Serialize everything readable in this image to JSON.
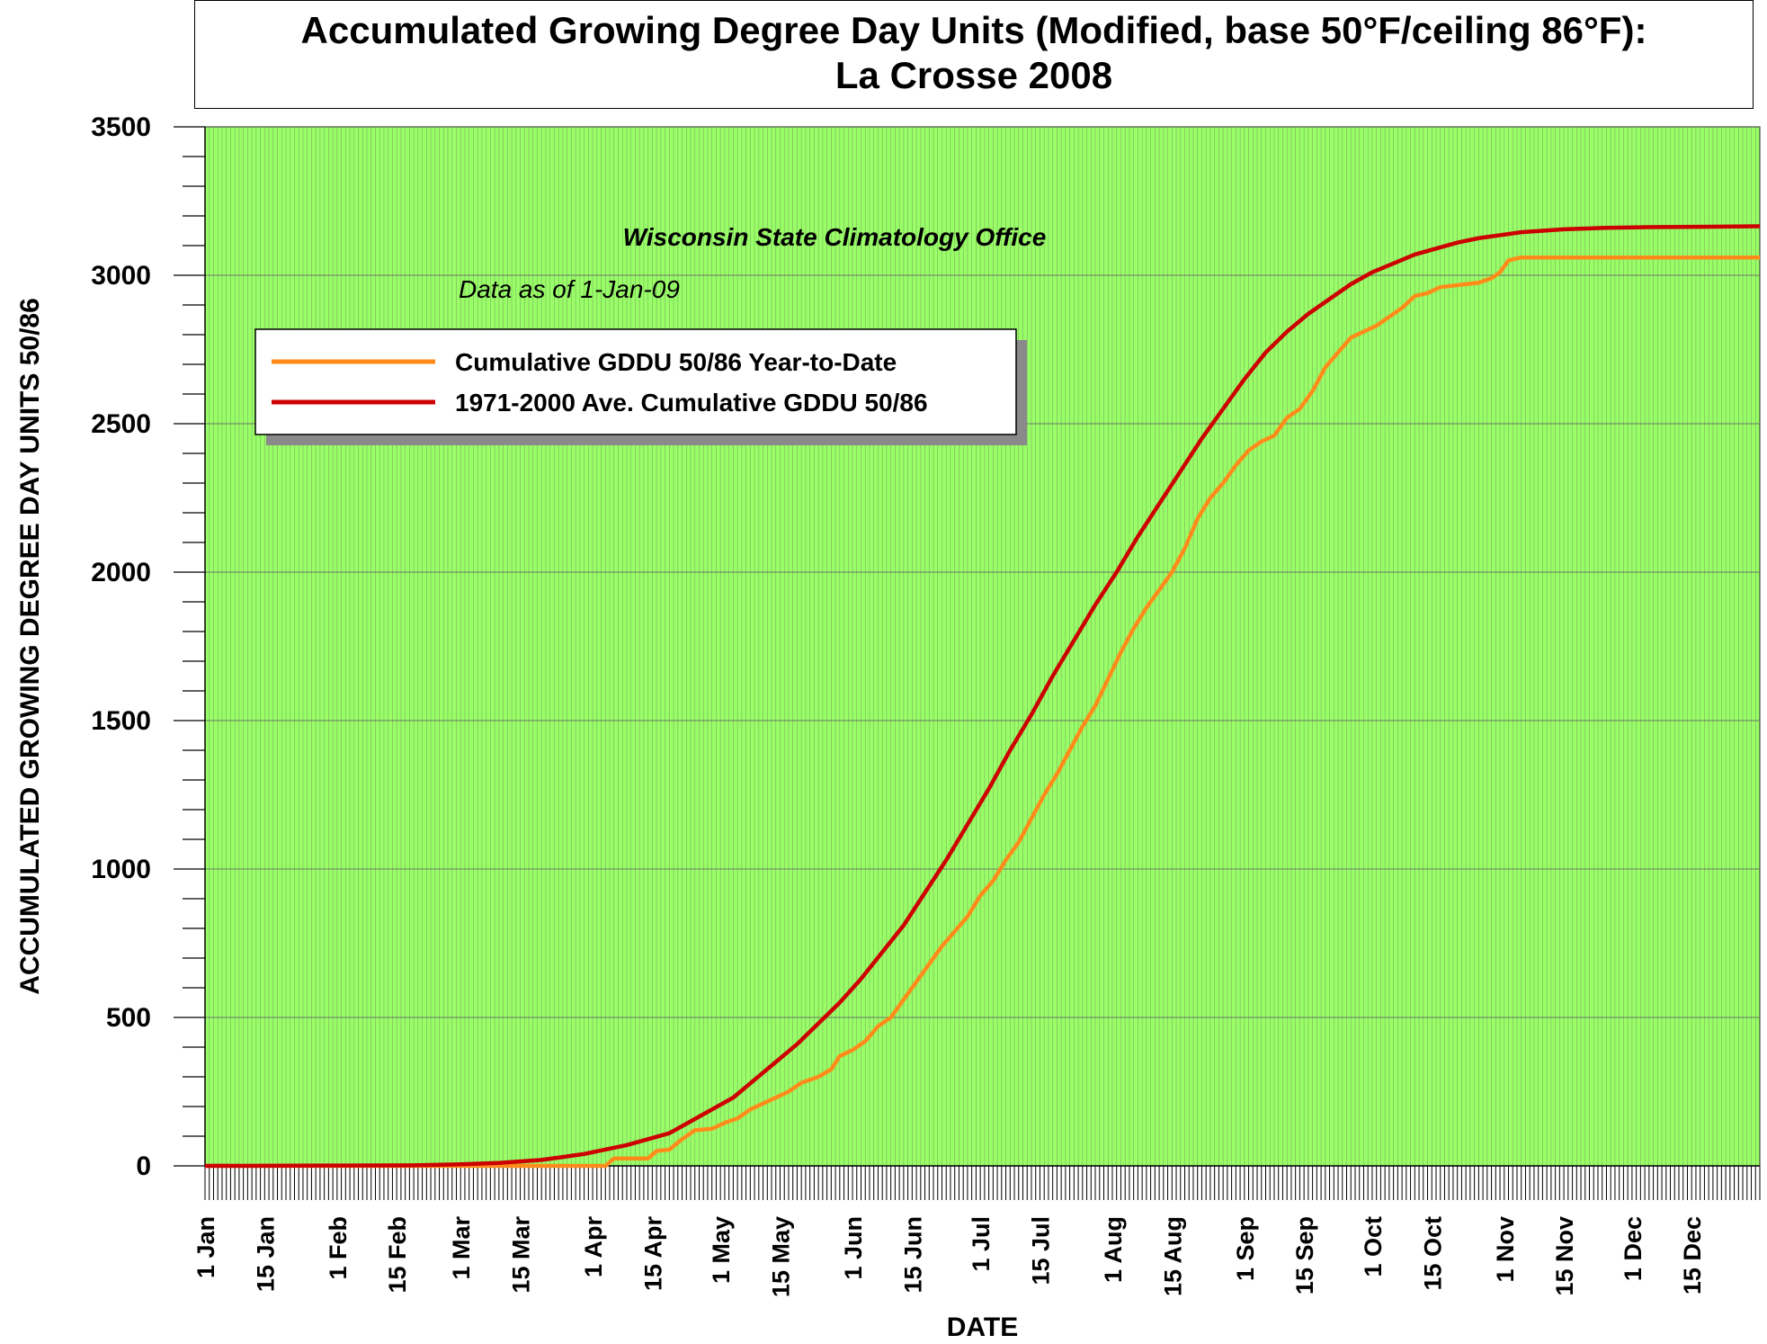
{
  "title": {
    "line1": "Accumulated Growing Degree Day Units (Modified, base 50°F/ceiling 86°F):",
    "line2": "La Crosse 2008"
  },
  "annotations": {
    "office": "Wisconsin State Climatology Office",
    "data_as_of": "Data as of 1-Jan-09"
  },
  "colors": {
    "plot_bg": "#99ff66",
    "grid": "#666666",
    "year_to_date": "#ff8c1a",
    "average": "#cc0000"
  },
  "chart_data": {
    "type": "line",
    "xlabel": "DATE",
    "ylabel": "ACCUMULATED GROWING DEGREE DAY UNITS 50/86",
    "ylim": [
      0,
      3500
    ],
    "xlim_day_of_year": [
      1,
      366
    ],
    "yticks": [
      0,
      500,
      1000,
      1500,
      2000,
      2500,
      3000,
      3500
    ],
    "xticks": [
      {
        "day": 1,
        "label": "1 Jan"
      },
      {
        "day": 15,
        "label": "15 Jan"
      },
      {
        "day": 32,
        "label": "1 Feb"
      },
      {
        "day": 46,
        "label": "15 Feb"
      },
      {
        "day": 61,
        "label": "1 Mar"
      },
      {
        "day": 75,
        "label": "15 Mar"
      },
      {
        "day": 92,
        "label": "1 Apr"
      },
      {
        "day": 106,
        "label": "15 Apr"
      },
      {
        "day": 122,
        "label": "1 May"
      },
      {
        "day": 136,
        "label": "15 May"
      },
      {
        "day": 153,
        "label": "1 Jun"
      },
      {
        "day": 167,
        "label": "15 Jun"
      },
      {
        "day": 183,
        "label": "1 Jul"
      },
      {
        "day": 197,
        "label": "15 Jul"
      },
      {
        "day": 214,
        "label": "1 Aug"
      },
      {
        "day": 228,
        "label": "15 Aug"
      },
      {
        "day": 245,
        "label": "1 Sep"
      },
      {
        "day": 259,
        "label": "15 Sep"
      },
      {
        "day": 275,
        "label": "1 Oct"
      },
      {
        "day": 289,
        "label": "15 Oct"
      },
      {
        "day": 306,
        "label": "1 Nov"
      },
      {
        "day": 320,
        "label": "15 Nov"
      },
      {
        "day": 336,
        "label": "1 Dec"
      },
      {
        "day": 350,
        "label": "15 Dec"
      }
    ],
    "legend_position": "top-left",
    "series": [
      {
        "name": "Cumulative GDDU 50/86 Year-to-Date",
        "color": "#ff8c1a",
        "points": [
          [
            1,
            0
          ],
          [
            60,
            0
          ],
          [
            70,
            0
          ],
          [
            80,
            0
          ],
          [
            88,
            0
          ],
          [
            92,
            0
          ],
          [
            95,
            0
          ],
          [
            97,
            25
          ],
          [
            103,
            25
          ],
          [
            105,
            25
          ],
          [
            107,
            50
          ],
          [
            110,
            55
          ],
          [
            113,
            90
          ],
          [
            116,
            120
          ],
          [
            120,
            125
          ],
          [
            123,
            145
          ],
          [
            126,
            160
          ],
          [
            129,
            190
          ],
          [
            132,
            210
          ],
          [
            135,
            230
          ],
          [
            138,
            250
          ],
          [
            141,
            280
          ],
          [
            145,
            300
          ],
          [
            148,
            325
          ],
          [
            150,
            370
          ],
          [
            153,
            390
          ],
          [
            156,
            420
          ],
          [
            159,
            470
          ],
          [
            162,
            500
          ],
          [
            165,
            560
          ],
          [
            168,
            620
          ],
          [
            171,
            680
          ],
          [
            174,
            740
          ],
          [
            177,
            790
          ],
          [
            180,
            840
          ],
          [
            183,
            910
          ],
          [
            186,
            960
          ],
          [
            189,
            1030
          ],
          [
            192,
            1090
          ],
          [
            195,
            1170
          ],
          [
            198,
            1250
          ],
          [
            201,
            1320
          ],
          [
            204,
            1400
          ],
          [
            207,
            1480
          ],
          [
            210,
            1550
          ],
          [
            213,
            1640
          ],
          [
            216,
            1730
          ],
          [
            219,
            1810
          ],
          [
            222,
            1880
          ],
          [
            225,
            1940
          ],
          [
            228,
            2000
          ],
          [
            231,
            2080
          ],
          [
            234,
            2180
          ],
          [
            237,
            2250
          ],
          [
            240,
            2300
          ],
          [
            243,
            2360
          ],
          [
            246,
            2410
          ],
          [
            249,
            2440
          ],
          [
            252,
            2460
          ],
          [
            255,
            2520
          ],
          [
            258,
            2550
          ],
          [
            261,
            2610
          ],
          [
            264,
            2690
          ],
          [
            267,
            2740
          ],
          [
            270,
            2790
          ],
          [
            273,
            2810
          ],
          [
            276,
            2830
          ],
          [
            279,
            2860
          ],
          [
            282,
            2890
          ],
          [
            285,
            2930
          ],
          [
            288,
            2940
          ],
          [
            291,
            2960
          ],
          [
            294,
            2965
          ],
          [
            297,
            2970
          ],
          [
            300,
            2975
          ],
          [
            303,
            2990
          ],
          [
            305,
            3010
          ],
          [
            307,
            3050
          ],
          [
            310,
            3060
          ],
          [
            320,
            3060
          ],
          [
            340,
            3060
          ],
          [
            366,
            3060
          ]
        ]
      },
      {
        "name": "1971-2000 Ave. Cumulative GDDU 50/86",
        "color": "#cc0000",
        "points": [
          [
            1,
            0
          ],
          [
            30,
            1
          ],
          [
            50,
            2
          ],
          [
            60,
            5
          ],
          [
            70,
            10
          ],
          [
            80,
            20
          ],
          [
            85,
            30
          ],
          [
            90,
            40
          ],
          [
            95,
            55
          ],
          [
            100,
            70
          ],
          [
            105,
            90
          ],
          [
            110,
            110
          ],
          [
            115,
            150
          ],
          [
            120,
            190
          ],
          [
            125,
            230
          ],
          [
            130,
            290
          ],
          [
            135,
            350
          ],
          [
            140,
            410
          ],
          [
            145,
            480
          ],
          [
            150,
            550
          ],
          [
            155,
            630
          ],
          [
            160,
            720
          ],
          [
            165,
            810
          ],
          [
            170,
            920
          ],
          [
            175,
            1030
          ],
          [
            180,
            1150
          ],
          [
            185,
            1270
          ],
          [
            190,
            1400
          ],
          [
            195,
            1520
          ],
          [
            200,
            1650
          ],
          [
            205,
            1770
          ],
          [
            210,
            1890
          ],
          [
            215,
            2000
          ],
          [
            220,
            2120
          ],
          [
            225,
            2230
          ],
          [
            230,
            2340
          ],
          [
            235,
            2450
          ],
          [
            240,
            2550
          ],
          [
            245,
            2650
          ],
          [
            250,
            2740
          ],
          [
            255,
            2810
          ],
          [
            260,
            2870
          ],
          [
            265,
            2920
          ],
          [
            270,
            2970
          ],
          [
            275,
            3010
          ],
          [
            280,
            3040
          ],
          [
            285,
            3070
          ],
          [
            290,
            3090
          ],
          [
            295,
            3110
          ],
          [
            300,
            3125
          ],
          [
            305,
            3135
          ],
          [
            310,
            3145
          ],
          [
            320,
            3155
          ],
          [
            330,
            3160
          ],
          [
            340,
            3162
          ],
          [
            366,
            3165
          ]
        ]
      }
    ]
  }
}
